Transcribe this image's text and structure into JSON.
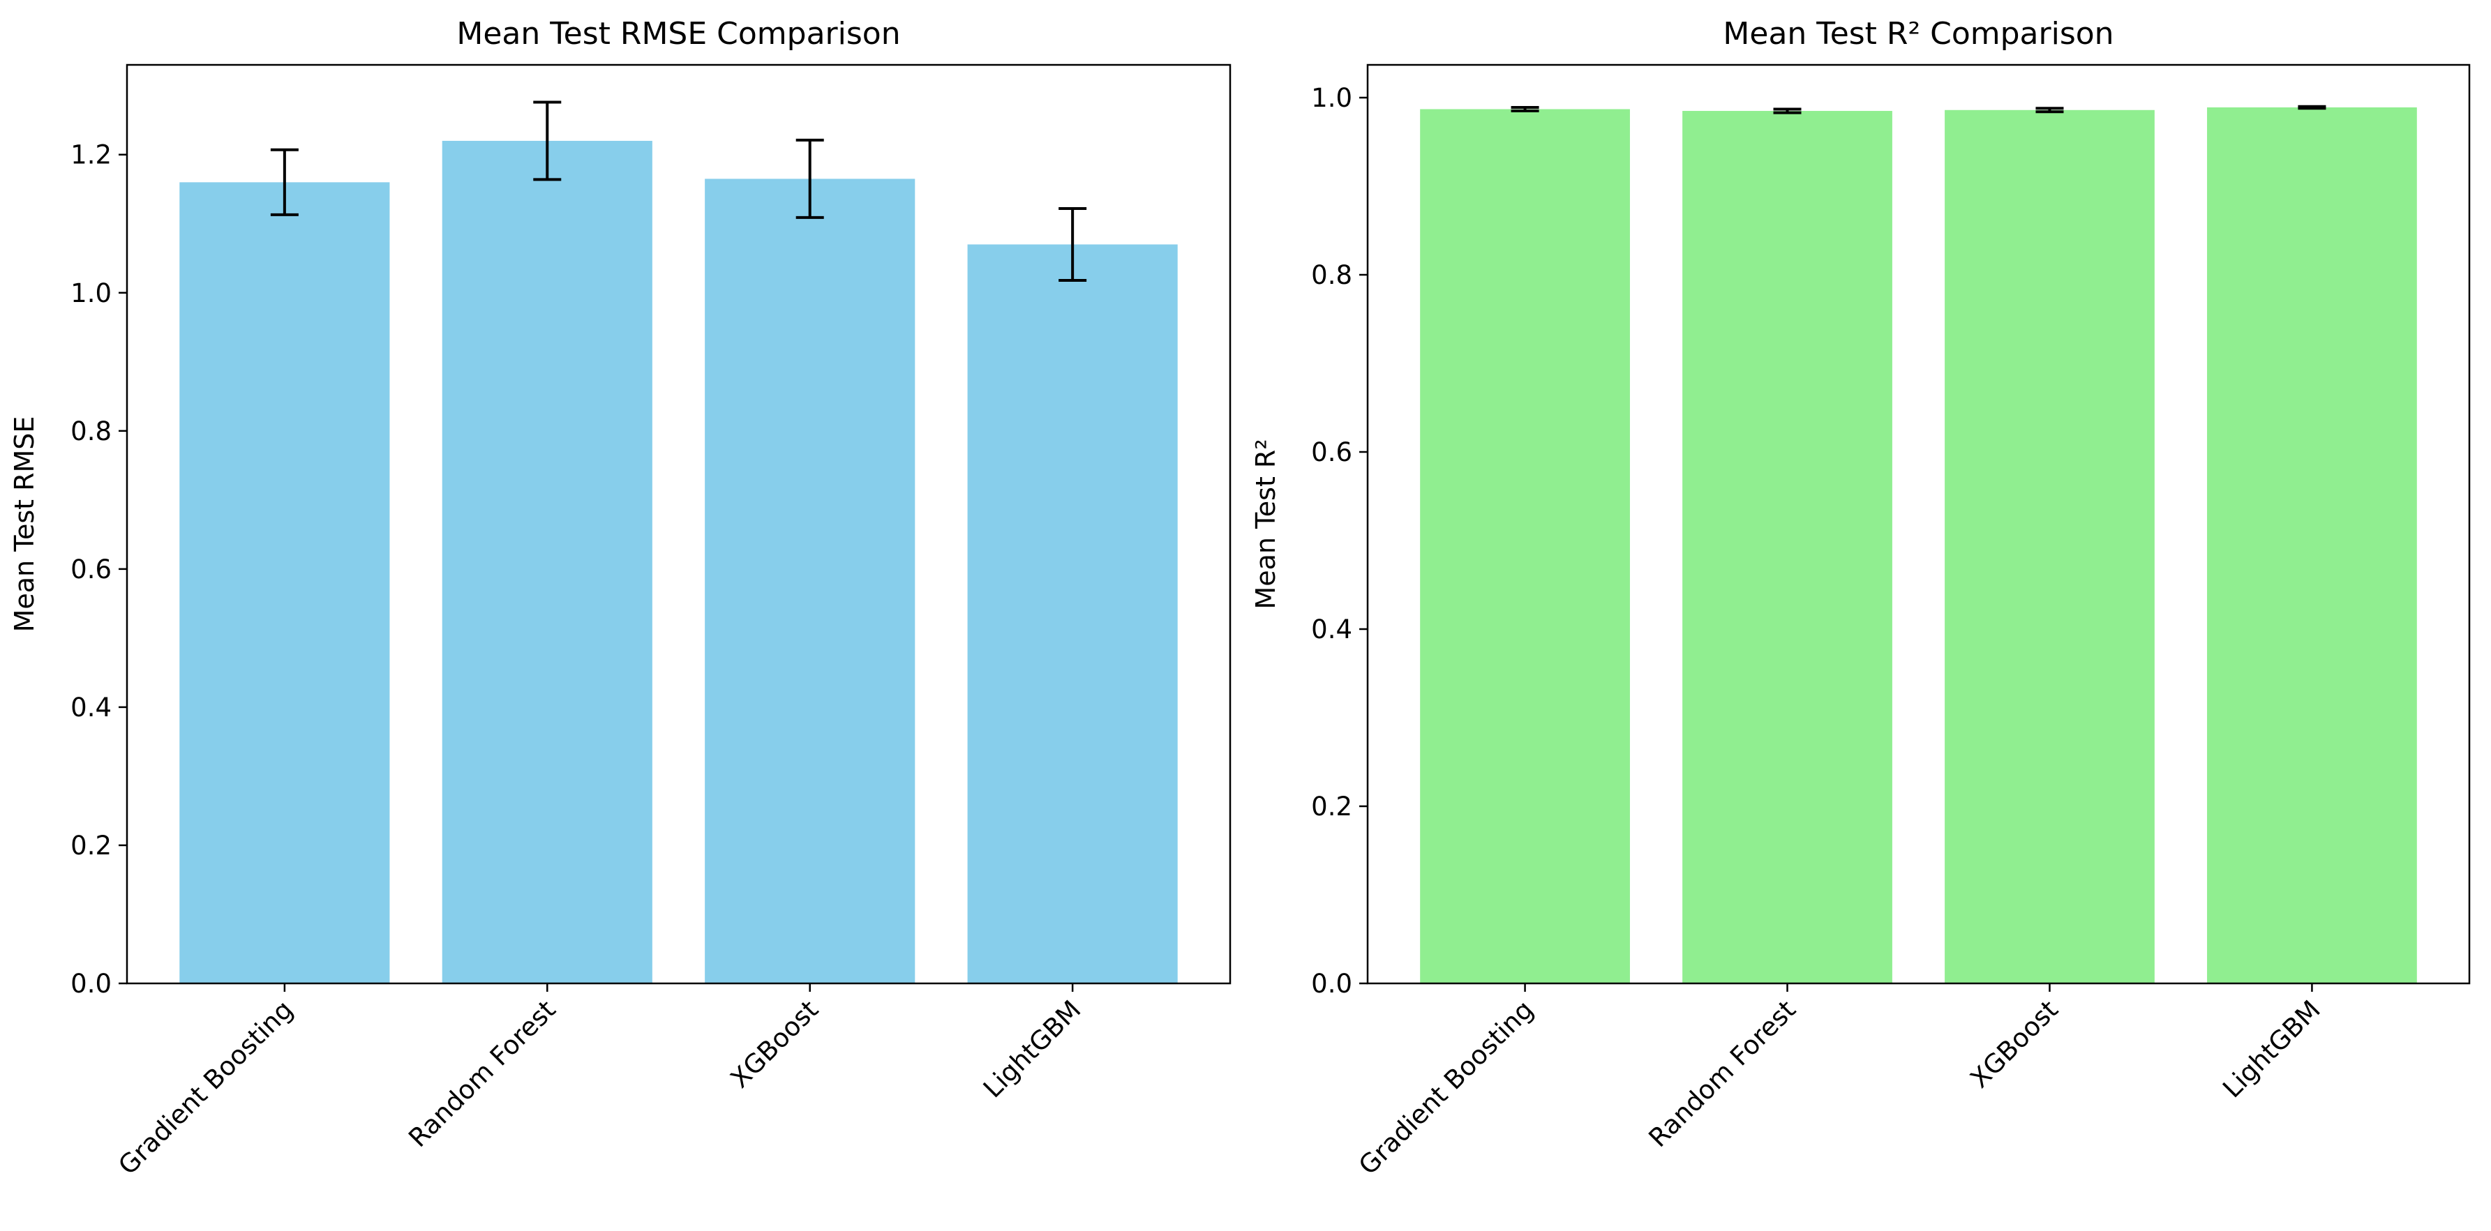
{
  "chart_data": [
    {
      "type": "bar",
      "title": "Mean Test RMSE Comparison",
      "xlabel": "",
      "ylabel": "Mean Test RMSE",
      "categories": [
        "Gradient Boosting",
        "Random Forest",
        "XGBoost",
        "LightGBM"
      ],
      "values": [
        1.16,
        1.22,
        1.165,
        1.07
      ],
      "errors": [
        0.047,
        0.056,
        0.056,
        0.052
      ],
      "ylim": [
        0,
        1.33
      ],
      "yticks": [
        0.0,
        0.2,
        0.4,
        0.6,
        0.8,
        1.0,
        1.2
      ],
      "bar_color": "#87CEEB",
      "grid": false
    },
    {
      "type": "bar",
      "title": "Mean Test R² Comparison",
      "xlabel": "",
      "ylabel": "Mean Test R²",
      "categories": [
        "Gradient Boosting",
        "Random Forest",
        "XGBoost",
        "LightGBM"
      ],
      "values": [
        0.987,
        0.985,
        0.986,
        0.989
      ],
      "errors": [
        0.002,
        0.002,
        0.002,
        0.001
      ],
      "ylim": [
        0,
        1.037
      ],
      "yticks": [
        0.0,
        0.2,
        0.4,
        0.6,
        0.8,
        1.0
      ],
      "bar_color": "#90EE90",
      "grid": false
    }
  ]
}
